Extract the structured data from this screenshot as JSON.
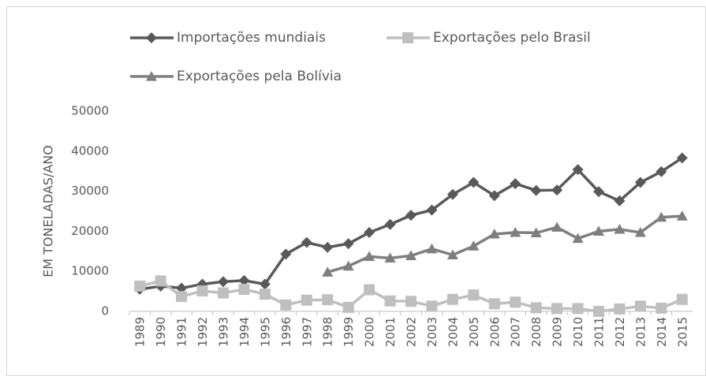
{
  "chart_data": {
    "type": "line",
    "y_label": "EM TONELADAS/ANO",
    "categories": [
      "1989",
      "1990",
      "1991",
      "1992",
      "1993",
      "1994",
      "1995",
      "1996",
      "1997",
      "1998",
      "1999",
      "2000",
      "2001",
      "2002",
      "2003",
      "2004",
      "2005",
      "2006",
      "2007",
      "2008",
      "2009",
      "2010",
      "2011",
      "2012",
      "2013",
      "2014",
      "2015"
    ],
    "series": [
      {
        "name": "Importações mundiais",
        "color": "#595959",
        "marker": "diamond",
        "values": [
          5500,
          6300,
          5800,
          6800,
          7400,
          7700,
          6800,
          14300,
          17200,
          16000,
          16900,
          19700,
          21700,
          24000,
          25300,
          29200,
          32200,
          28900,
          31900,
          30200,
          30300,
          35400,
          29900,
          27600,
          32200,
          34900,
          38300
        ]
      },
      {
        "name": "Exportações pelo Brasil",
        "color": "#bfbfbf",
        "marker": "square",
        "values": [
          6300,
          7600,
          3700,
          5100,
          4600,
          5500,
          4300,
          1600,
          2800,
          2900,
          1000,
          5400,
          2600,
          2500,
          1300,
          3000,
          4100,
          1900,
          2300,
          900,
          700,
          700,
          0,
          600,
          1300,
          800,
          3000
        ]
      },
      {
        "name": "Exportações pela Bolívia",
        "color": "#7f7f7f",
        "marker": "triangle",
        "values": [
          null,
          null,
          null,
          null,
          null,
          null,
          null,
          null,
          null,
          9800,
          11300,
          13700,
          13300,
          13900,
          15600,
          14100,
          16300,
          19300,
          19700,
          19600,
          21000,
          18200,
          20000,
          20500,
          19700,
          23500,
          23800
        ]
      }
    ],
    "ylim": [
      0,
      50000
    ],
    "yticks": [
      0,
      10000,
      20000,
      30000,
      40000,
      50000
    ],
    "grid": false
  }
}
